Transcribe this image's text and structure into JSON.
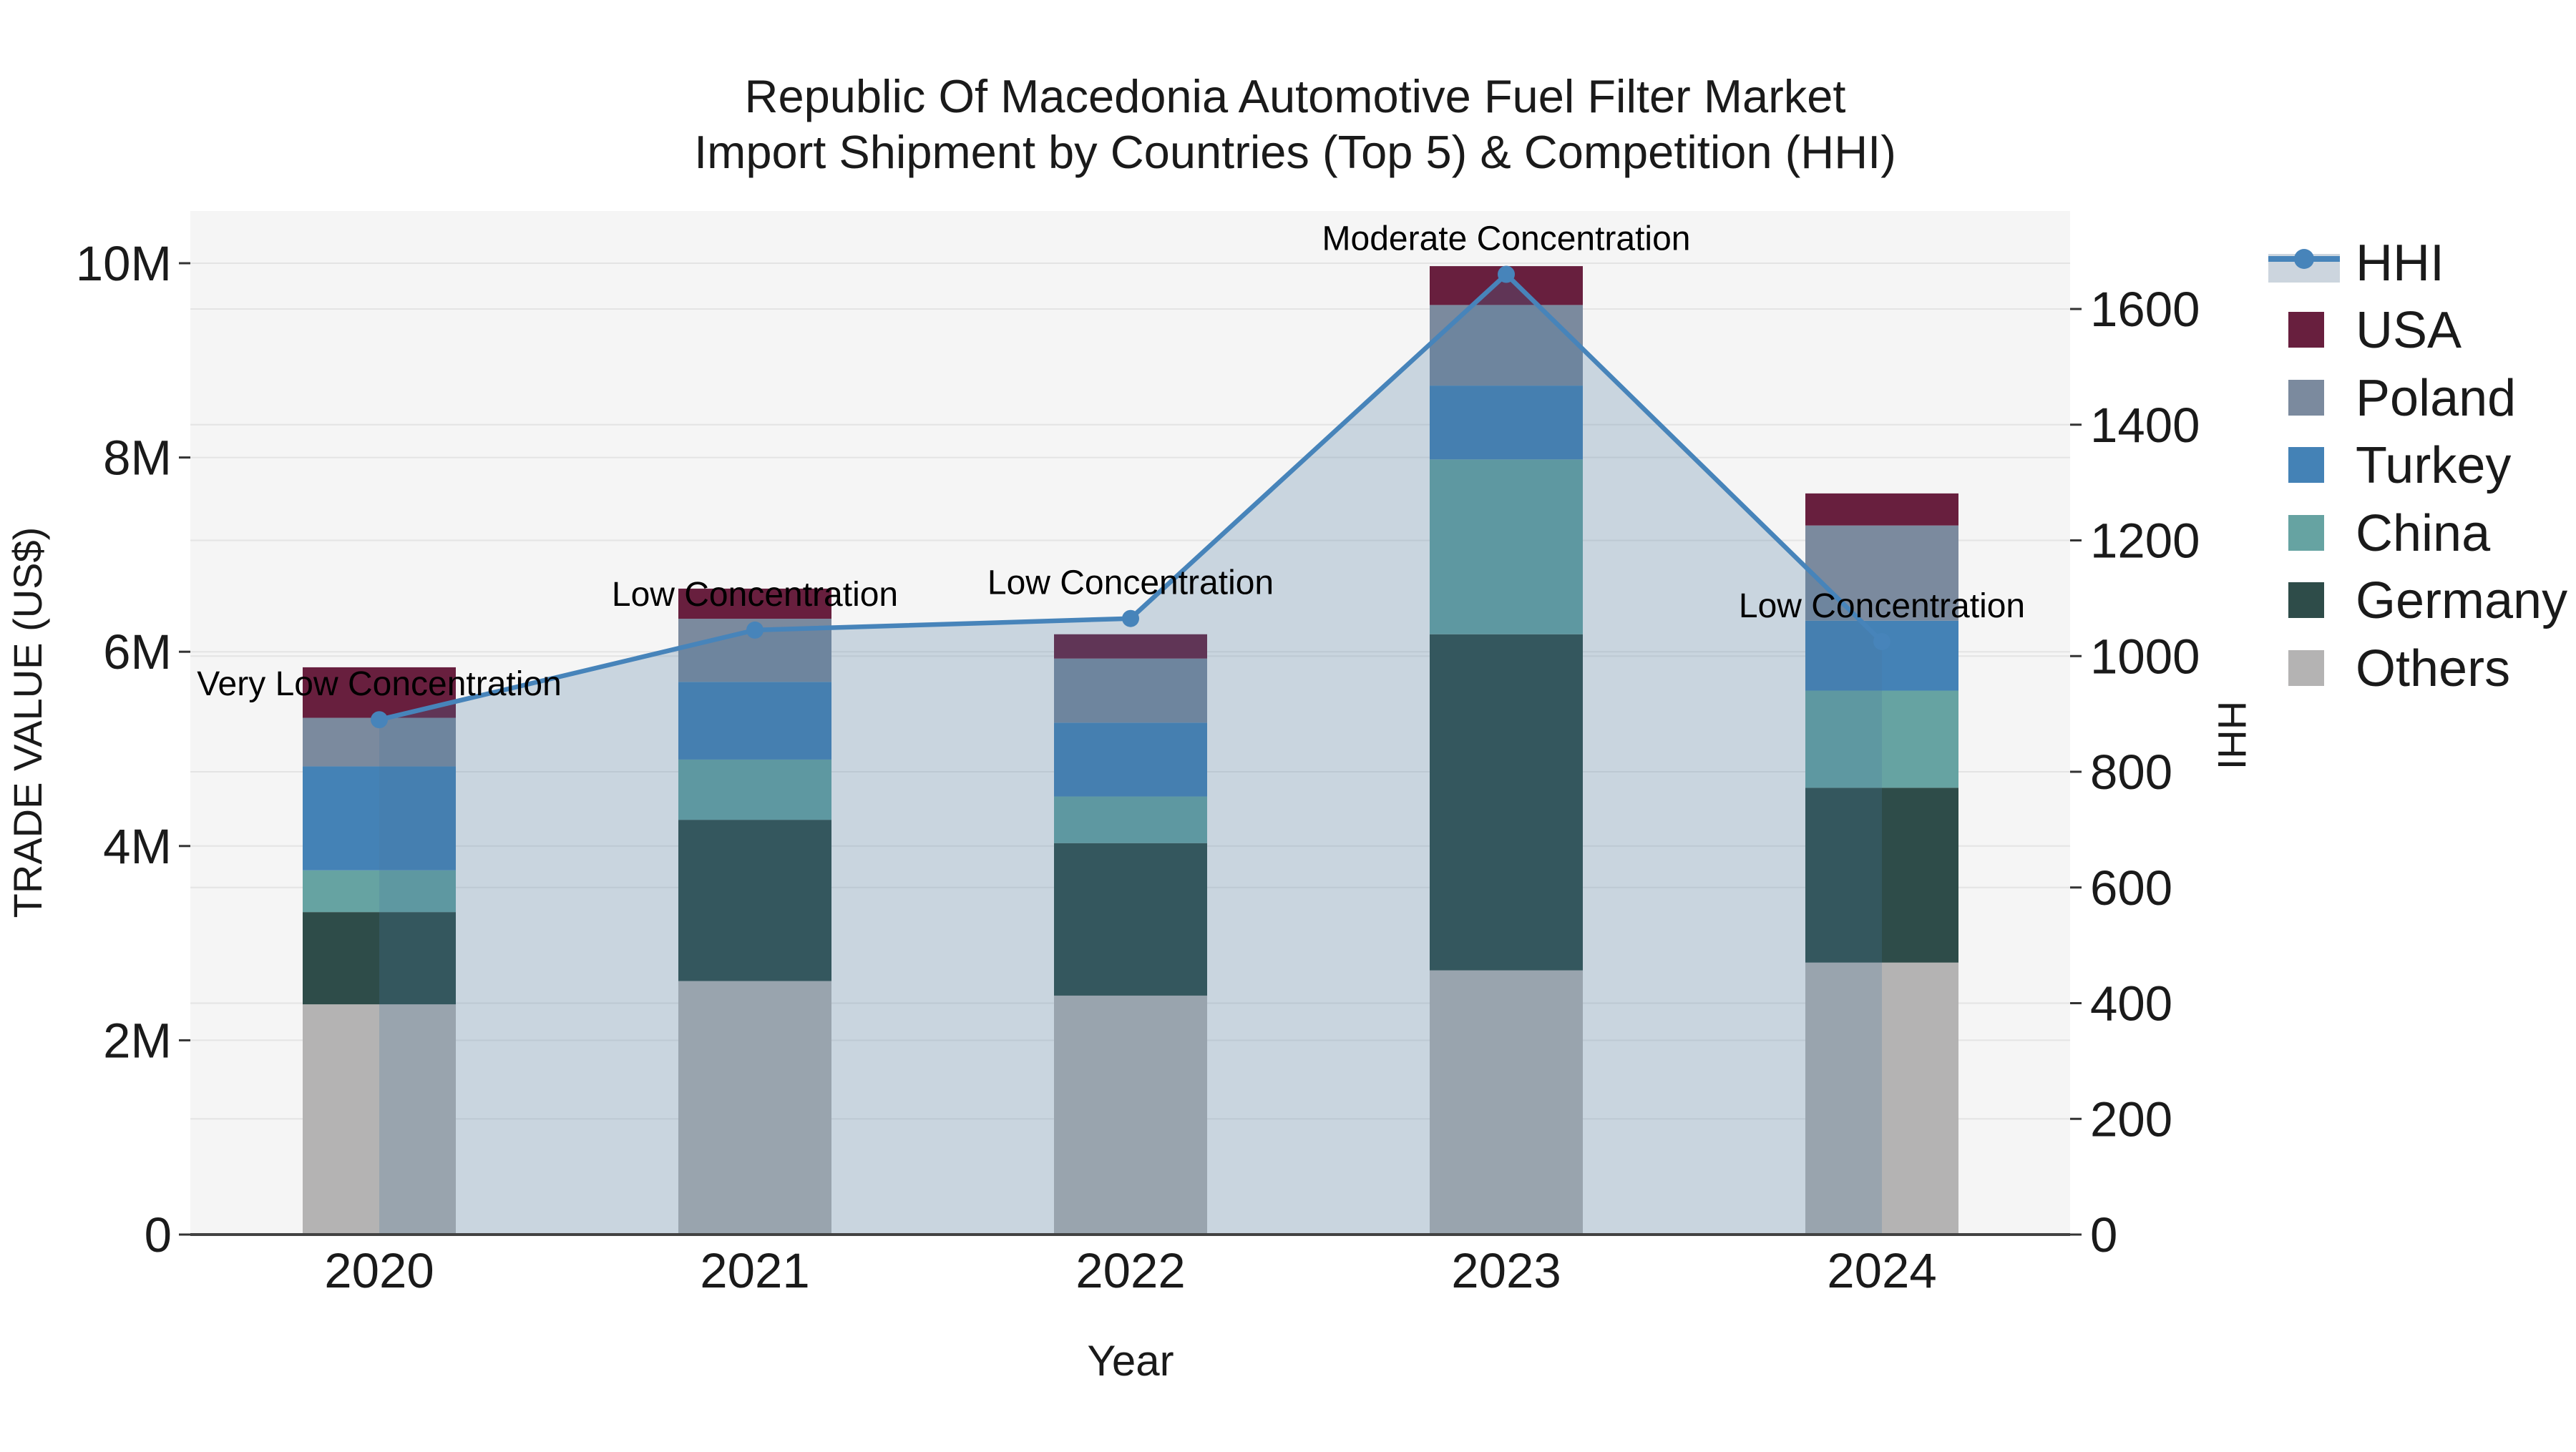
{
  "title": {
    "line1": "Republic Of Macedonia Automotive Fuel Filter Market",
    "line2": "Import Shipment by Countries (Top 5) & Competition (HHI)"
  },
  "chart_data": {
    "type": "bar",
    "stacked": true,
    "categories": [
      "2020",
      "2021",
      "2022",
      "2023",
      "2024"
    ],
    "series": [
      {
        "name": "Others",
        "color": "#b4b3b3",
        "values": [
          2.37,
          2.61,
          2.46,
          2.72,
          2.8
        ]
      },
      {
        "name": "Germany",
        "color": "#2e4c49",
        "values": [
          0.95,
          1.66,
          1.57,
          3.46,
          1.8
        ]
      },
      {
        "name": "China",
        "color": "#66a3a2",
        "values": [
          0.43,
          0.62,
          0.48,
          1.8,
          1.0
        ]
      },
      {
        "name": "Turkey",
        "color": "#4482b6",
        "values": [
          1.07,
          0.8,
          0.76,
          0.76,
          0.72
        ]
      },
      {
        "name": "Poland",
        "color": "#7b8a9e",
        "values": [
          0.5,
          0.65,
          0.66,
          0.83,
          0.98
        ]
      },
      {
        "name": "USA",
        "color": "#681f3e",
        "values": [
          0.52,
          0.31,
          0.25,
          0.4,
          0.33
        ]
      }
    ],
    "bar_totals_musd": [
      5.84,
      6.65,
      6.18,
      9.97,
      7.63
    ],
    "line_series": {
      "name": "HHI",
      "color": "#4784ba",
      "fill_color": "rgba(71,118,160,0.25)",
      "values": [
        890,
        1045,
        1065,
        1660,
        1025
      ]
    },
    "annotations": [
      "Very Low Concentration",
      "Low Concentration",
      "Low Concentration",
      "Moderate Concentration",
      "Low Concentration"
    ],
    "xlabel": "Year",
    "ylabel_left": "TRADE VALUE (US$)",
    "ylabel_right": "HHI",
    "y_left_tick_labels": [
      "0",
      "2M",
      "4M",
      "6M",
      "8M",
      "10M"
    ],
    "y_left_tick_values": [
      0,
      2,
      4,
      6,
      8,
      10
    ],
    "y_right_tick_labels": [
      "0",
      "200",
      "400",
      "600",
      "800",
      "1000",
      "1200",
      "1400",
      "1600"
    ],
    "y_right_tick_values": [
      0,
      200,
      400,
      600,
      800,
      1000,
      1200,
      1400,
      1600
    ],
    "ylim_left_musd": [
      0,
      10.55
    ],
    "ylim_right_hhi": [
      0,
      1780
    ],
    "grid": true,
    "legend_position": "right",
    "legend_order": [
      "HHI",
      "USA",
      "Poland",
      "Turkey",
      "China",
      "Germany",
      "Others"
    ]
  },
  "colors": {
    "plot_bg": "#f5f5f5",
    "figure_bg": "#ffffff",
    "gridline": "#e4e4e4",
    "axis_line": "#424242",
    "tick_mark": "#333333",
    "text": "#1a1a1a"
  }
}
